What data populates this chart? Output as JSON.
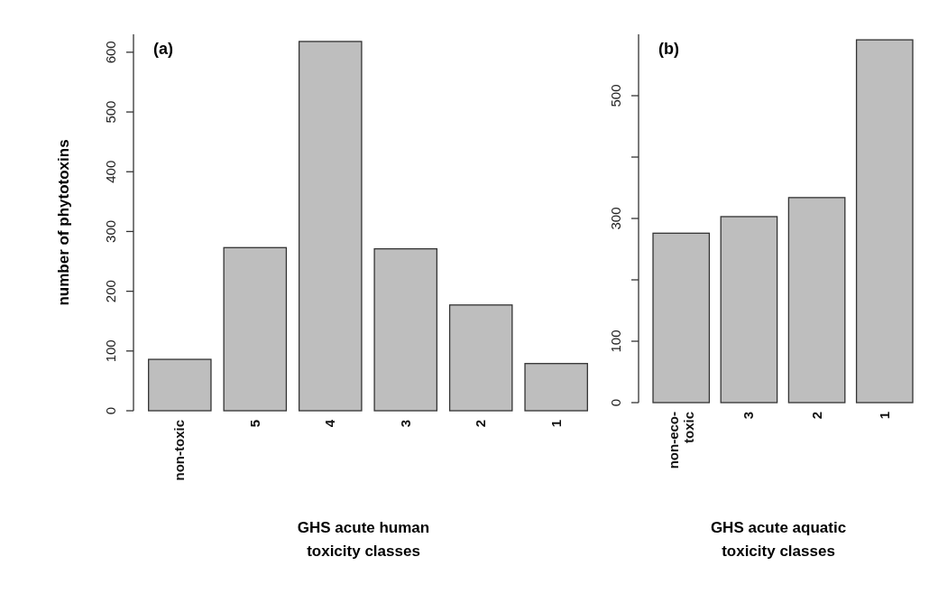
{
  "chart_data": [
    {
      "type": "bar",
      "title": "(a)",
      "xlabel": "GHS acute human toxicity classes",
      "ylabel": "number of phytotoxins",
      "categories": [
        "non-toxic",
        "5",
        "4",
        "3",
        "2",
        "1"
      ],
      "values": [
        86,
        273,
        618,
        271,
        177,
        79
      ],
      "color": "#bebebe",
      "ylim": [
        0,
        630
      ],
      "yticks": [
        0,
        100,
        200,
        300,
        400,
        500,
        600
      ]
    },
    {
      "type": "bar",
      "title": "(b)",
      "xlabel": "GHS acute aquatic toxicity classes",
      "categories": [
        "non-eco-toxic",
        "3",
        "2",
        "1"
      ],
      "values": [
        276,
        303,
        334,
        591
      ],
      "color": "#bebebe",
      "ylim": [
        0,
        600
      ],
      "yticks": [
        0,
        100,
        {
          "value": 200,
          "label": null
        },
        300,
        {
          "value": 400,
          "label": null
        },
        500
      ]
    }
  ]
}
